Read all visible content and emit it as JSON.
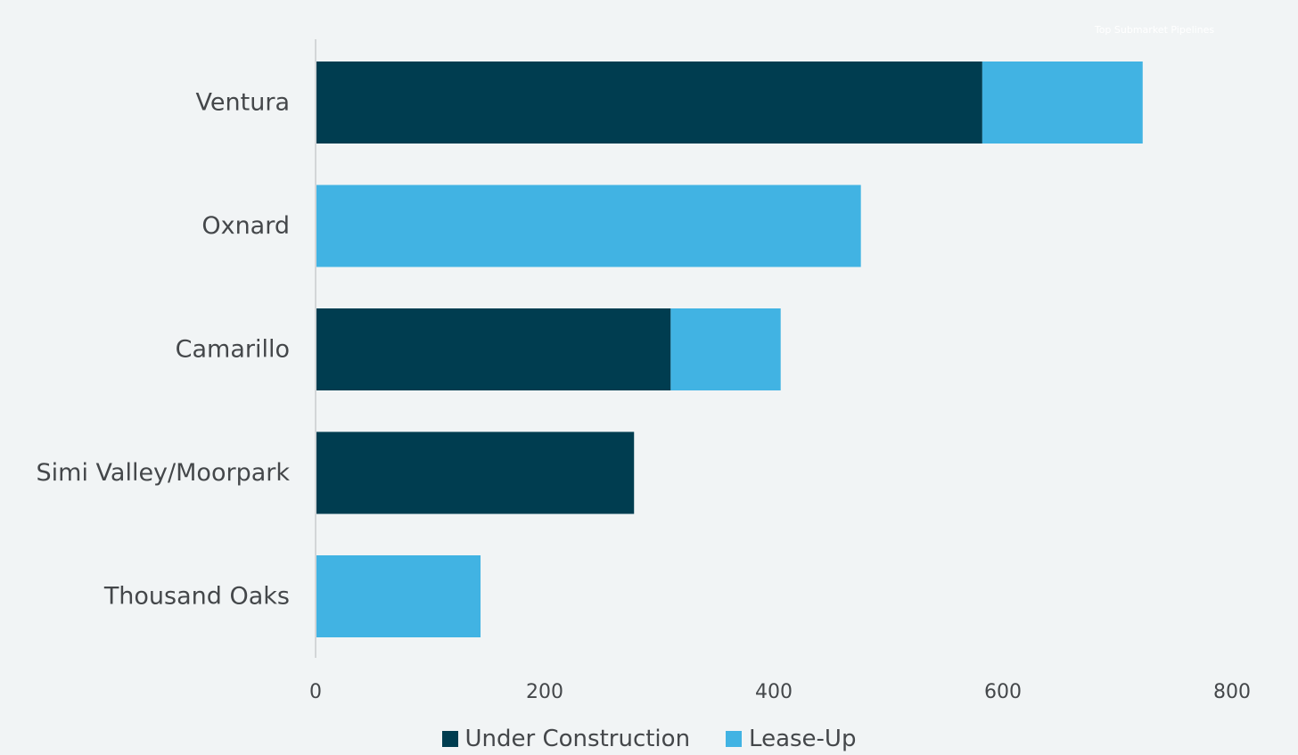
{
  "chart_data": {
    "type": "bar",
    "orientation": "horizontal",
    "stacked": true,
    "title": "Top Submarket Pipelines",
    "categories": [
      "Ventura",
      "Oxnard",
      "Camarillo",
      "Simi Valley/Moorpark",
      "Thousand Oaks"
    ],
    "series": [
      {
        "name": "Under Construction",
        "color": "#003d50",
        "values": [
          582,
          0,
          310,
          278,
          0
        ]
      },
      {
        "name": "Lease-Up",
        "color": "#41b3e3",
        "values": [
          140,
          476,
          96,
          0,
          144
        ]
      }
    ],
    "xlim": [
      0,
      800
    ],
    "xticks": [
      0,
      200,
      400,
      600,
      800
    ],
    "grid": false,
    "legend_position": "bottom"
  }
}
